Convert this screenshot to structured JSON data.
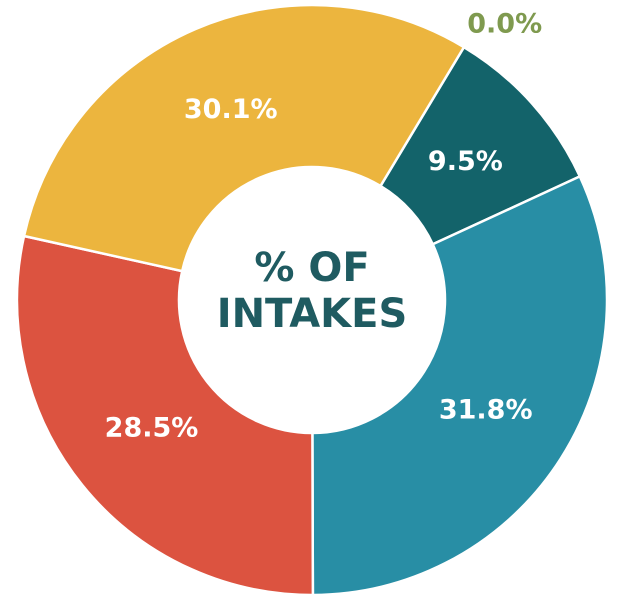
{
  "chart_data": {
    "type": "donut",
    "title": "% OF INTAKES",
    "categories": [
      null,
      null,
      null,
      null,
      null
    ],
    "values": [
      0.0,
      9.5,
      31.8,
      28.5,
      30.1
    ],
    "value_labels": [
      "0.0%",
      "9.5%",
      "31.8%",
      "28.5%",
      "30.1%"
    ],
    "colors": [
      "#7f9a4f",
      "#13636a",
      "#288ea5",
      "#dc5340",
      "#ecb53e"
    ]
  }
}
